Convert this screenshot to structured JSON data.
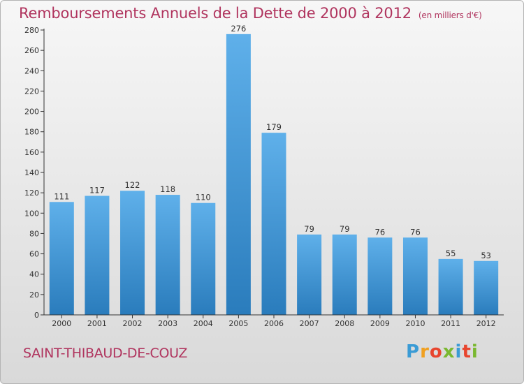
{
  "header": {
    "title": "Remboursements Annuels de la Dette de 2000 à 2012",
    "unit": "(en milliers d'€)"
  },
  "footer": {
    "city": "SAINT-THIBAUD-DE-COUZ",
    "logo_letters": [
      "P",
      "r",
      "o",
      "x",
      "i",
      "t",
      "i"
    ],
    "logo_colors": [
      "#3a9bd5",
      "#f0a020",
      "#e8452e",
      "#7ab830",
      "#3a9bd5",
      "#e8452e",
      "#7ab830"
    ]
  },
  "chart_data": {
    "type": "bar",
    "title": "Remboursements Annuels de la Dette de 2000 à 2012",
    "categories": [
      "2000",
      "2001",
      "2002",
      "2003",
      "2004",
      "2005",
      "2006",
      "2007",
      "2008",
      "2009",
      "2010",
      "2011",
      "2012"
    ],
    "values": [
      111,
      117,
      122,
      118,
      110,
      276,
      179,
      79,
      79,
      76,
      76,
      55,
      53
    ],
    "ylim": [
      0,
      280
    ],
    "yticks": [
      0,
      20,
      40,
      60,
      80,
      100,
      120,
      140,
      160,
      180,
      200,
      220,
      240,
      260,
      280
    ],
    "grid": false,
    "colors": {
      "bar_top": "#5fb0ea",
      "bar_bottom": "#2a7cbc",
      "text": "#b0345e"
    }
  }
}
